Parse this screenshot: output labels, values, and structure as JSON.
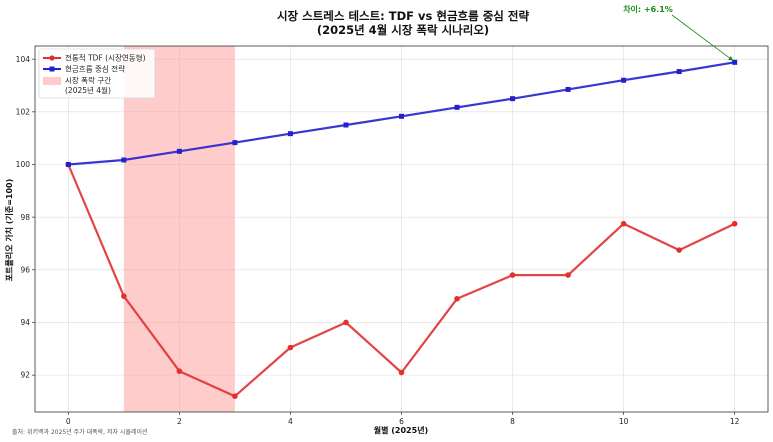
{
  "chart_data": {
    "type": "line",
    "title": "시장 스트레스 테스트: TDF vs 현금흐름 중심 전략",
    "subtitle": "(2025년 4월 시장 폭락 시나리오)",
    "xlabel": "월별 (2025년)",
    "ylabel": "포트폴리오 가치 (기준=100)",
    "xlim": [
      -0.6,
      12.6
    ],
    "ylim": [
      90.6,
      104.5
    ],
    "xticks": [
      0,
      2,
      4,
      6,
      8,
      10,
      12
    ],
    "yticks": [
      92,
      94,
      96,
      98,
      100,
      102,
      104
    ],
    "grid": true,
    "legend_position": "top-left",
    "x": [
      0,
      1,
      2,
      3,
      4,
      5,
      6,
      7,
      8,
      9,
      10,
      11,
      12
    ],
    "series": [
      {
        "name": "전통적 TDF (시장연동형)",
        "color": "#e03030",
        "marker": "circle",
        "values": [
          100,
          95.0,
          92.15,
          91.2,
          93.05,
          94.0,
          92.1,
          94.9,
          95.8,
          95.8,
          97.75,
          96.75,
          97.75
        ]
      },
      {
        "name": "현금흐름 중심 전략",
        "color": "#2222cc",
        "marker": "square",
        "values": [
          100,
          100.17,
          100.5,
          100.83,
          101.17,
          101.5,
          101.83,
          102.17,
          102.5,
          102.85,
          103.2,
          103.53,
          103.88
        ]
      }
    ],
    "shaded_region": {
      "x_start": 1,
      "x_end": 3,
      "label_line1": "시장 폭락 구간",
      "label_line2": "(2025년 4월)",
      "color": "#ff9999"
    },
    "annotation": {
      "text": "차이: +6.1%",
      "color": "#1a8a1a",
      "target_x": 12,
      "target_y": 103.88
    },
    "source_note": "출처: 위키백과 2025년 주가 대폭락, 저자 시뮬레이션"
  }
}
